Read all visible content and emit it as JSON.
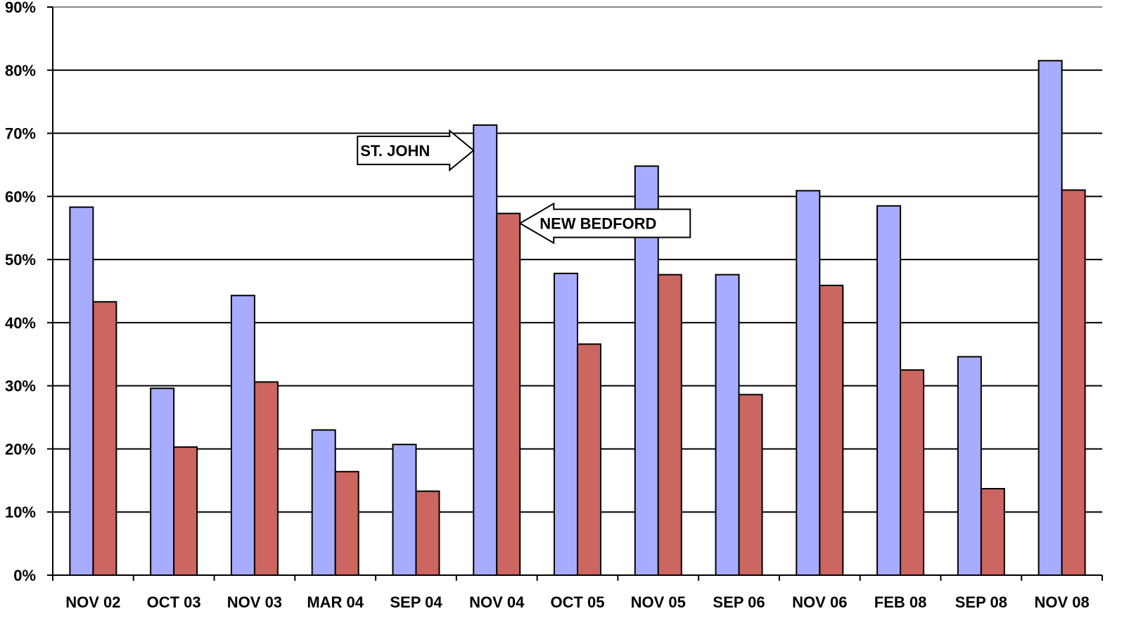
{
  "chart_data": {
    "type": "bar",
    "categories": [
      "NOV 02",
      "OCT 03",
      "NOV 03",
      "MAR 04",
      "SEP 04",
      "NOV 04",
      "OCT 05",
      "NOV 05",
      "SEP 06",
      "NOV 06",
      "FEB 08",
      "SEP 08",
      "NOV 08"
    ],
    "series": [
      {
        "values": [
          58.3,
          29.6,
          44.3,
          23.0,
          20.7,
          71.3,
          47.8,
          64.8,
          47.6,
          60.9,
          58.5,
          34.6,
          81.5
        ],
        "color": "#a8acff"
      },
      {
        "values": [
          43.3,
          20.3,
          30.6,
          16.4,
          13.3,
          57.3,
          36.6,
          47.6,
          28.6,
          45.9,
          32.5,
          13.7,
          61.0
        ],
        "color": "#cc6660"
      }
    ],
    "ylim": [
      0,
      90
    ],
    "yticks": [
      "0%",
      "10%",
      "20%",
      "30%",
      "40%",
      "50%",
      "60%",
      "70%",
      "80%",
      "90%"
    ],
    "grid": true,
    "annotations": [
      {
        "text": "ST. JOHN",
        "points_to_category": "NOV 04",
        "points_to_series": 0,
        "direction": "right"
      },
      {
        "text": "NEW BEDFORD",
        "points_to_category": "NOV 04",
        "points_to_series": 1,
        "direction": "left"
      }
    ]
  }
}
